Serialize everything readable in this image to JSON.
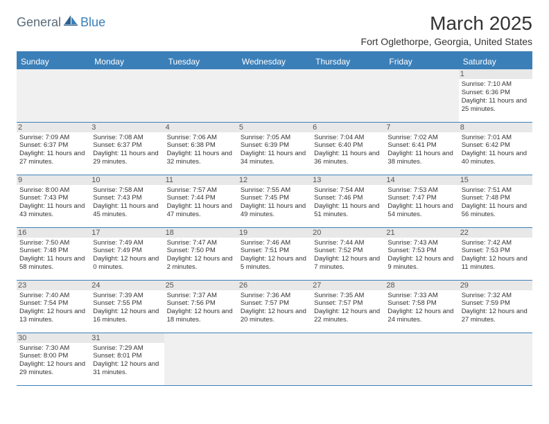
{
  "logo": {
    "part1": "General",
    "part2": "Blue"
  },
  "title": "March 2025",
  "location": "Fort Oglethorpe, Georgia, United States",
  "colors": {
    "accent": "#3b7fb8",
    "text": "#333333",
    "grayBg": "#e8e8e8"
  },
  "dayHeaders": [
    "Sunday",
    "Monday",
    "Tuesday",
    "Wednesday",
    "Thursday",
    "Friday",
    "Saturday"
  ],
  "weeks": [
    [
      null,
      null,
      null,
      null,
      null,
      null,
      {
        "n": "1",
        "sunrise": "7:10 AM",
        "sunset": "6:36 PM",
        "daylight": "11 hours and 25 minutes."
      }
    ],
    [
      {
        "n": "2",
        "sunrise": "7:09 AM",
        "sunset": "6:37 PM",
        "daylight": "11 hours and 27 minutes."
      },
      {
        "n": "3",
        "sunrise": "7:08 AM",
        "sunset": "6:37 PM",
        "daylight": "11 hours and 29 minutes."
      },
      {
        "n": "4",
        "sunrise": "7:06 AM",
        "sunset": "6:38 PM",
        "daylight": "11 hours and 32 minutes."
      },
      {
        "n": "5",
        "sunrise": "7:05 AM",
        "sunset": "6:39 PM",
        "daylight": "11 hours and 34 minutes."
      },
      {
        "n": "6",
        "sunrise": "7:04 AM",
        "sunset": "6:40 PM",
        "daylight": "11 hours and 36 minutes."
      },
      {
        "n": "7",
        "sunrise": "7:02 AM",
        "sunset": "6:41 PM",
        "daylight": "11 hours and 38 minutes."
      },
      {
        "n": "8",
        "sunrise": "7:01 AM",
        "sunset": "6:42 PM",
        "daylight": "11 hours and 40 minutes."
      }
    ],
    [
      {
        "n": "9",
        "sunrise": "8:00 AM",
        "sunset": "7:43 PM",
        "daylight": "11 hours and 43 minutes."
      },
      {
        "n": "10",
        "sunrise": "7:58 AM",
        "sunset": "7:43 PM",
        "daylight": "11 hours and 45 minutes."
      },
      {
        "n": "11",
        "sunrise": "7:57 AM",
        "sunset": "7:44 PM",
        "daylight": "11 hours and 47 minutes."
      },
      {
        "n": "12",
        "sunrise": "7:55 AM",
        "sunset": "7:45 PM",
        "daylight": "11 hours and 49 minutes."
      },
      {
        "n": "13",
        "sunrise": "7:54 AM",
        "sunset": "7:46 PM",
        "daylight": "11 hours and 51 minutes."
      },
      {
        "n": "14",
        "sunrise": "7:53 AM",
        "sunset": "7:47 PM",
        "daylight": "11 hours and 54 minutes."
      },
      {
        "n": "15",
        "sunrise": "7:51 AM",
        "sunset": "7:48 PM",
        "daylight": "11 hours and 56 minutes."
      }
    ],
    [
      {
        "n": "16",
        "sunrise": "7:50 AM",
        "sunset": "7:48 PM",
        "daylight": "11 hours and 58 minutes."
      },
      {
        "n": "17",
        "sunrise": "7:49 AM",
        "sunset": "7:49 PM",
        "daylight": "12 hours and 0 minutes."
      },
      {
        "n": "18",
        "sunrise": "7:47 AM",
        "sunset": "7:50 PM",
        "daylight": "12 hours and 2 minutes."
      },
      {
        "n": "19",
        "sunrise": "7:46 AM",
        "sunset": "7:51 PM",
        "daylight": "12 hours and 5 minutes."
      },
      {
        "n": "20",
        "sunrise": "7:44 AM",
        "sunset": "7:52 PM",
        "daylight": "12 hours and 7 minutes."
      },
      {
        "n": "21",
        "sunrise": "7:43 AM",
        "sunset": "7:53 PM",
        "daylight": "12 hours and 9 minutes."
      },
      {
        "n": "22",
        "sunrise": "7:42 AM",
        "sunset": "7:53 PM",
        "daylight": "12 hours and 11 minutes."
      }
    ],
    [
      {
        "n": "23",
        "sunrise": "7:40 AM",
        "sunset": "7:54 PM",
        "daylight": "12 hours and 13 minutes."
      },
      {
        "n": "24",
        "sunrise": "7:39 AM",
        "sunset": "7:55 PM",
        "daylight": "12 hours and 16 minutes."
      },
      {
        "n": "25",
        "sunrise": "7:37 AM",
        "sunset": "7:56 PM",
        "daylight": "12 hours and 18 minutes."
      },
      {
        "n": "26",
        "sunrise": "7:36 AM",
        "sunset": "7:57 PM",
        "daylight": "12 hours and 20 minutes."
      },
      {
        "n": "27",
        "sunrise": "7:35 AM",
        "sunset": "7:57 PM",
        "daylight": "12 hours and 22 minutes."
      },
      {
        "n": "28",
        "sunrise": "7:33 AM",
        "sunset": "7:58 PM",
        "daylight": "12 hours and 24 minutes."
      },
      {
        "n": "29",
        "sunrise": "7:32 AM",
        "sunset": "7:59 PM",
        "daylight": "12 hours and 27 minutes."
      }
    ],
    [
      {
        "n": "30",
        "sunrise": "7:30 AM",
        "sunset": "8:00 PM",
        "daylight": "12 hours and 29 minutes."
      },
      {
        "n": "31",
        "sunrise": "7:29 AM",
        "sunset": "8:01 PM",
        "daylight": "12 hours and 31 minutes."
      },
      null,
      null,
      null,
      null,
      null
    ]
  ],
  "labels": {
    "sunrise": "Sunrise:",
    "sunset": "Sunset:",
    "daylight": "Daylight:"
  }
}
